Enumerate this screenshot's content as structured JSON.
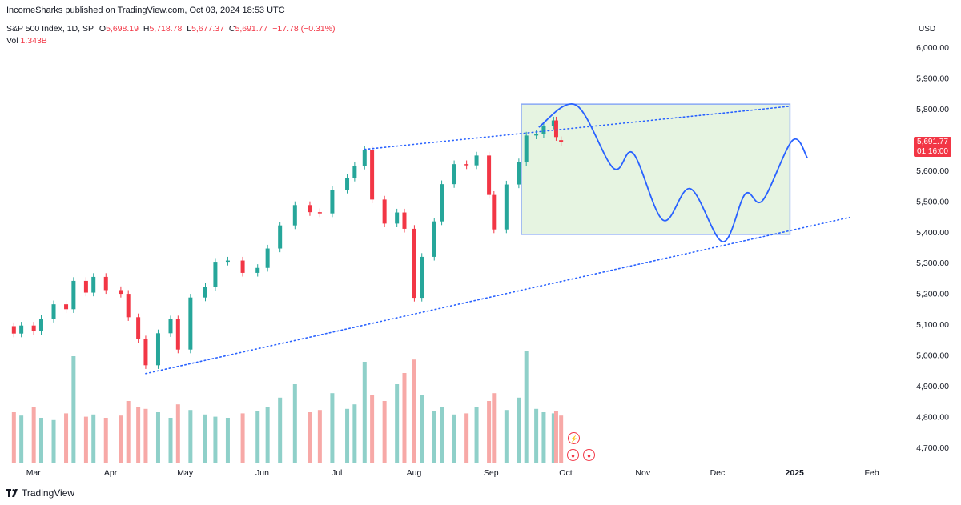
{
  "header": {
    "published": "IncomeSharks published on TradingView.com, Oct 03, 2024 18:53 UTC"
  },
  "legend": {
    "symbol": "S&P 500 Index, 1D, SP",
    "open_label": "O",
    "open": "5,698.19",
    "high_label": "H",
    "high": "5,718.78",
    "low_label": "L",
    "low": "5,677.37",
    "close_label": "C",
    "close": "5,691.77",
    "change": "−17.78 (−0.31%)",
    "vol_label": "Vol",
    "vol": "1.343B"
  },
  "price_axis": {
    "currency": "USD",
    "labels": [
      "6,000.00",
      "5,900.00",
      "5,800.00",
      "5,700.00",
      "5,600.00",
      "5,500.00",
      "5,400.00",
      "5,300.00",
      "5,200.00",
      "5,100.00",
      "5,000.00",
      "4,900.00",
      "4,800.00",
      "4,700.00"
    ],
    "last_price": "5,691.77",
    "countdown": "01:16:00"
  },
  "time_axis": {
    "labels": [
      "Mar",
      "Apr",
      "May",
      "Jun",
      "Jul",
      "Aug",
      "Sep",
      "Oct",
      "Nov",
      "Dec",
      "2025",
      "Feb"
    ]
  },
  "brand": {
    "name": "TradingView"
  },
  "colors": {
    "up": "#26a69a",
    "down": "#f23645",
    "up_volume": "#8fd0c9",
    "down_volume": "#f7a9a7",
    "projection": "#2962ff",
    "box_fill": "#e6f4e1",
    "box_border": "#89a8f5"
  },
  "chart_data": {
    "type": "candlestick",
    "symbol": "S&P 500 Index",
    "interval": "1D",
    "ylim": [
      4650,
      6050
    ],
    "x_range": [
      "2024-02-23",
      "2025-02-15"
    ],
    "price_line": 5691.77,
    "candles": [
      {
        "date": "2024-02-26",
        "o": 5094,
        "c": 5070
      },
      {
        "date": "2024-02-29",
        "o": 5070,
        "c": 5096
      },
      {
        "date": "2024-03-05",
        "o": 5096,
        "c": 5078
      },
      {
        "date": "2024-03-08",
        "o": 5078,
        "c": 5118
      },
      {
        "date": "2024-03-13",
        "o": 5118,
        "c": 5165
      },
      {
        "date": "2024-03-18",
        "o": 5165,
        "c": 5149
      },
      {
        "date": "2024-03-21",
        "o": 5149,
        "c": 5241
      },
      {
        "date": "2024-03-26",
        "o": 5241,
        "c": 5203
      },
      {
        "date": "2024-03-29",
        "o": 5203,
        "c": 5254
      },
      {
        "date": "2024-04-03",
        "o": 5254,
        "c": 5211
      },
      {
        "date": "2024-04-09",
        "o": 5211,
        "c": 5199
      },
      {
        "date": "2024-04-12",
        "o": 5199,
        "c": 5123
      },
      {
        "date": "2024-04-16",
        "o": 5123,
        "c": 5051
      },
      {
        "date": "2024-04-19",
        "o": 5051,
        "c": 4967
      },
      {
        "date": "2024-04-24",
        "o": 4967,
        "c": 5071
      },
      {
        "date": "2024-04-29",
        "o": 5071,
        "c": 5116
      },
      {
        "date": "2024-05-02",
        "o": 5116,
        "c": 5018
      },
      {
        "date": "2024-05-07",
        "o": 5018,
        "c": 5187
      },
      {
        "date": "2024-05-13",
        "o": 5187,
        "c": 5221
      },
      {
        "date": "2024-05-17",
        "o": 5221,
        "c": 5303
      },
      {
        "date": "2024-05-22",
        "o": 5303,
        "c": 5307
      },
      {
        "date": "2024-05-28",
        "o": 5307,
        "c": 5267
      },
      {
        "date": "2024-06-03",
        "o": 5267,
        "c": 5283
      },
      {
        "date": "2024-06-07",
        "o": 5283,
        "c": 5346
      },
      {
        "date": "2024-06-12",
        "o": 5346,
        "c": 5421
      },
      {
        "date": "2024-06-18",
        "o": 5421,
        "c": 5487
      },
      {
        "date": "2024-06-24",
        "o": 5487,
        "c": 5464
      },
      {
        "date": "2024-06-28",
        "o": 5464,
        "c": 5460
      },
      {
        "date": "2024-07-03",
        "o": 5460,
        "c": 5537
      },
      {
        "date": "2024-07-09",
        "o": 5537,
        "c": 5576
      },
      {
        "date": "2024-07-12",
        "o": 5576,
        "c": 5615
      },
      {
        "date": "2024-07-16",
        "o": 5615,
        "c": 5667
      },
      {
        "date": "2024-07-19",
        "o": 5667,
        "c": 5505
      },
      {
        "date": "2024-07-24",
        "o": 5505,
        "c": 5427
      },
      {
        "date": "2024-07-29",
        "o": 5427,
        "c": 5463
      },
      {
        "date": "2024-08-01",
        "o": 5463,
        "c": 5410
      },
      {
        "date": "2024-08-05",
        "o": 5410,
        "c": 5186
      },
      {
        "date": "2024-08-08",
        "o": 5186,
        "c": 5319
      },
      {
        "date": "2024-08-13",
        "o": 5319,
        "c": 5434
      },
      {
        "date": "2024-08-16",
        "o": 5434,
        "c": 5555
      },
      {
        "date": "2024-08-21",
        "o": 5555,
        "c": 5620
      },
      {
        "date": "2024-08-26",
        "o": 5620,
        "c": 5616
      },
      {
        "date": "2024-08-30",
        "o": 5616,
        "c": 5648
      },
      {
        "date": "2024-09-04",
        "o": 5648,
        "c": 5520
      },
      {
        "date": "2024-09-06",
        "o": 5520,
        "c": 5408
      },
      {
        "date": "2024-09-11",
        "o": 5408,
        "c": 5554
      },
      {
        "date": "2024-09-16",
        "o": 5554,
        "c": 5626
      },
      {
        "date": "2024-09-19",
        "o": 5626,
        "c": 5713
      },
      {
        "date": "2024-09-23",
        "o": 5713,
        "c": 5718
      },
      {
        "date": "2024-09-26",
        "o": 5718,
        "c": 5745
      },
      {
        "date": "2024-09-30",
        "o": 5745,
        "c": 5762
      },
      {
        "date": "2024-10-01",
        "o": 5762,
        "c": 5708
      },
      {
        "date": "2024-10-03",
        "o": 5698,
        "c": 5692
      }
    ],
    "volume_note": "volume histogram per day in panel bottom (relative)",
    "volumes": [
      0.45,
      0.42,
      0.5,
      0.4,
      0.38,
      0.44,
      0.95,
      0.41,
      0.43,
      0.4,
      0.42,
      0.55,
      0.5,
      0.48,
      0.45,
      0.4,
      0.52,
      0.47,
      0.43,
      0.41,
      0.4,
      0.44,
      0.46,
      0.5,
      0.58,
      0.7,
      0.45,
      0.47,
      0.62,
      0.48,
      0.52,
      0.9,
      0.6,
      0.55,
      0.7,
      0.8,
      0.92,
      0.6,
      0.46,
      0.5,
      0.43,
      0.44,
      0.5,
      0.55,
      0.62,
      0.47,
      0.58,
      1.0,
      0.48,
      0.45,
      0.44,
      0.46,
      0.42
    ],
    "trendlines": [
      {
        "name": "upper",
        "from": {
          "date": "2024-07-16",
          "price": 5668
        },
        "to": {
          "date": "2025-01-03",
          "price": 5808
        }
      },
      {
        "name": "lower",
        "from": {
          "date": "2024-04-19",
          "price": 4940
        },
        "to": {
          "date": "2025-01-27",
          "price": 5447
        }
      }
    ],
    "projection_box": {
      "from_date": "2024-09-17",
      "to_date": "2025-01-03",
      "top": 5815,
      "bottom": 5392
    },
    "projection_path": [
      {
        "date": "2024-09-24",
        "price": 5740
      },
      {
        "date": "2024-10-09",
        "price": 5812
      },
      {
        "date": "2024-10-24",
        "price": 5607
      },
      {
        "date": "2024-11-01",
        "price": 5655
      },
      {
        "date": "2024-11-13",
        "price": 5438
      },
      {
        "date": "2024-11-24",
        "price": 5540
      },
      {
        "date": "2024-12-07",
        "price": 5368
      },
      {
        "date": "2024-12-16",
        "price": 5523
      },
      {
        "date": "2024-12-23",
        "price": 5502
      },
      {
        "date": "2025-01-04",
        "price": 5697
      },
      {
        "date": "2025-01-10",
        "price": 5640
      }
    ]
  }
}
